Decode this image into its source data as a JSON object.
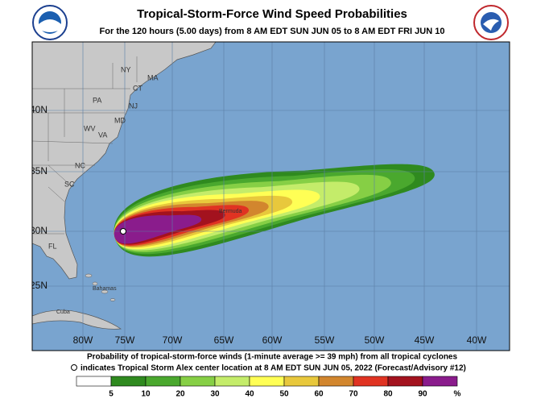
{
  "header": {
    "title": "Tropical-Storm-Force Wind Speed Probabilities",
    "subtitle": "For the 120 hours (5.00 days) from 8 AM EDT SUN JUN 05 to 8 AM EDT FRI JUN 10"
  },
  "map": {
    "lat_labels": [
      "40N",
      "35N",
      "30N",
      "25N"
    ],
    "lon_labels": [
      "80W",
      "75W",
      "70W",
      "65W",
      "60W",
      "55W",
      "50W",
      "45W",
      "40W"
    ],
    "places": [
      "NY",
      "MA",
      "CT",
      "PA",
      "NJ",
      "MD",
      "WV",
      "VA",
      "NC",
      "SC",
      "FL",
      "Bermuda",
      "Bahamas",
      "Cuba"
    ]
  },
  "footer": {
    "line1": "Probability of tropical-storm-force winds (1-minute average >= 39 mph) from all tropical cyclones",
    "line2": "indicates Tropical Storm Alex center location at 8 AM EDT SUN JUN 05, 2022 (Forecast/Advisory #12)",
    "legend_labels": [
      "5",
      "10",
      "20",
      "30",
      "40",
      "50",
      "60",
      "70",
      "80",
      "90",
      "%"
    ]
  }
}
